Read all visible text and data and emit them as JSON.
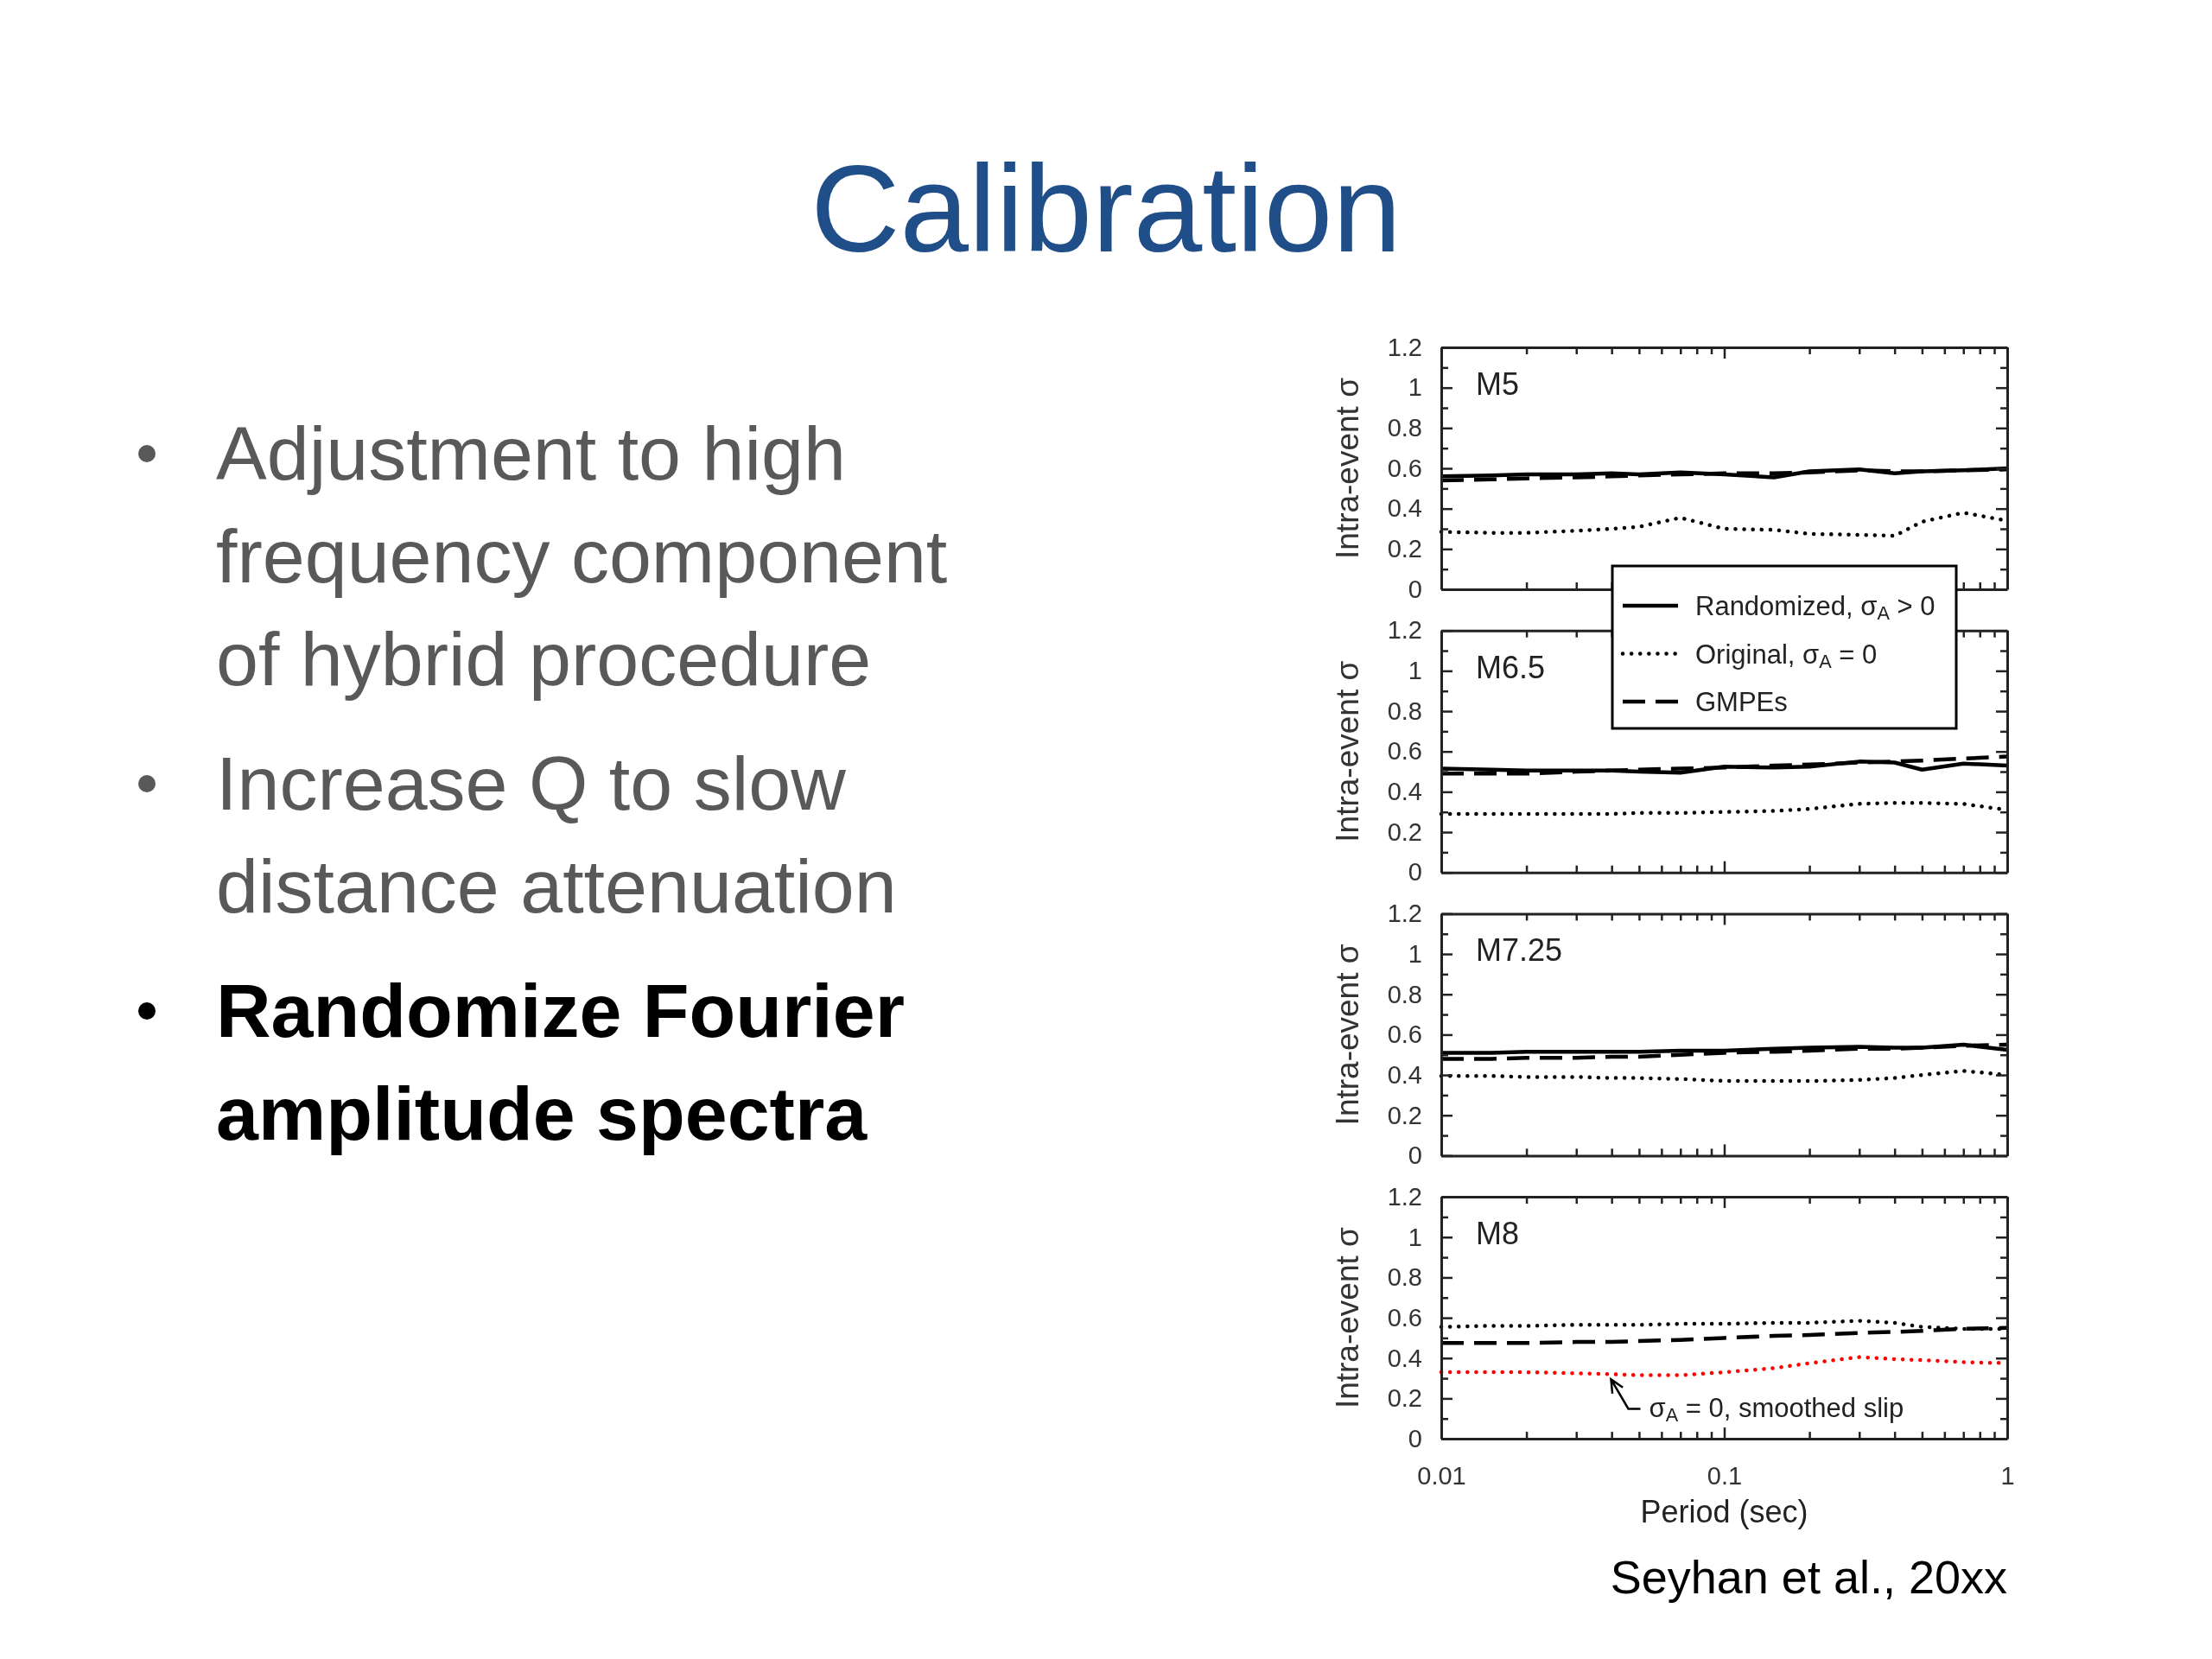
{
  "chart_data": [
    {
      "type": "other",
      "title": "Calibration",
      "annotations": [
        "Adjustment to high frequency component of hybrid procedure",
        "Increase Q to slow distance attenuation",
        "Randomize Fourier amplitude spectra"
      ]
    },
    {
      "type": "line",
      "title": "M5",
      "ylabel": "Intra-event σ",
      "log": "x",
      "tick_labels": "y",
      "legend": "bottom right",
      "xlim": [
        0.01,
        1
      ],
      "ylim": [
        0,
        1.2
      ],
      "xticks": [
        0.01,
        {
          "value": 0.02,
          "label": null
        },
        {
          "value": 0.03,
          "label": null
        },
        {
          "value": 0.04,
          "label": null
        },
        {
          "value": 0.05,
          "label": null
        },
        {
          "value": 0.06,
          "label": null
        },
        {
          "value": 0.07,
          "label": null
        },
        {
          "value": 0.08,
          "label": null
        },
        {
          "value": 0.09,
          "label": null
        },
        0.1,
        {
          "value": 0.2,
          "label": null
        },
        {
          "value": 0.3,
          "label": null
        },
        {
          "value": 0.4,
          "label": null
        },
        {
          "value": 0.5,
          "label": null
        },
        {
          "value": 0.6,
          "label": null
        },
        {
          "value": 0.7,
          "label": null
        },
        {
          "value": 0.8,
          "label": null
        },
        {
          "value": 0.9,
          "label": null
        },
        1
      ],
      "yticks": [
        0,
        {
          "value": 0.1,
          "label": null
        },
        0.2,
        {
          "value": 0.3,
          "label": null
        },
        0.4,
        {
          "value": 0.5,
          "label": null
        },
        0.6,
        {
          "value": 0.7,
          "label": null
        },
        0.8,
        {
          "value": 0.9,
          "label": null
        },
        1,
        {
          "value": 1.1,
          "label": null
        },
        1.2
      ],
      "x": [
        0.01,
        0.015,
        0.02,
        0.03,
        0.04,
        0.05,
        0.07,
        0.1,
        0.15,
        0.2,
        0.3,
        0.4,
        0.5,
        0.7,
        1
      ],
      "series": [
        {
          "name": "Randomized, σ$_{A}$ > 0",
          "color": "#000000",
          "line_style": "solid",
          "values": [
            0.56,
            0.565,
            0.57,
            0.57,
            0.575,
            0.57,
            0.58,
            0.57,
            0.555,
            0.585,
            0.595,
            0.575,
            0.585,
            0.59,
            0.6
          ]
        },
        {
          "name": "Original, σ$_{A}$ = 0",
          "color": "#000000",
          "line_style": "dotted",
          "values": [
            0.285,
            0.28,
            0.28,
            0.29,
            0.3,
            0.31,
            0.355,
            0.3,
            0.295,
            0.275,
            0.27,
            0.265,
            0.335,
            0.38,
            0.34
          ]
        },
        {
          "name": "GMPEs",
          "color": "#000000",
          "line_style": "dashed",
          "values": [
            0.54,
            0.545,
            0.55,
            0.555,
            0.56,
            0.565,
            0.57,
            0.575,
            0.575,
            0.58,
            0.59,
            0.585,
            0.585,
            0.59,
            0.595
          ]
        }
      ]
    },
    {
      "type": "line",
      "title": "M6.5",
      "ylabel": "Intra-event σ",
      "log": "x",
      "tick_labels": "y",
      "xlim": [
        0.01,
        1
      ],
      "ylim": [
        0,
        1.2
      ],
      "xticks": [
        0.01,
        {
          "value": 0.02,
          "label": null
        },
        {
          "value": 0.03,
          "label": null
        },
        {
          "value": 0.04,
          "label": null
        },
        {
          "value": 0.05,
          "label": null
        },
        {
          "value": 0.06,
          "label": null
        },
        {
          "value": 0.07,
          "label": null
        },
        {
          "value": 0.08,
          "label": null
        },
        {
          "value": 0.09,
          "label": null
        },
        0.1,
        {
          "value": 0.2,
          "label": null
        },
        {
          "value": 0.3,
          "label": null
        },
        {
          "value": 0.4,
          "label": null
        },
        {
          "value": 0.5,
          "label": null
        },
        {
          "value": 0.6,
          "label": null
        },
        {
          "value": 0.7,
          "label": null
        },
        {
          "value": 0.8,
          "label": null
        },
        {
          "value": 0.9,
          "label": null
        },
        1
      ],
      "yticks": [
        0,
        {
          "value": 0.1,
          "label": null
        },
        0.2,
        {
          "value": 0.3,
          "label": null
        },
        0.4,
        {
          "value": 0.5,
          "label": null
        },
        0.6,
        {
          "value": 0.7,
          "label": null
        },
        0.8,
        {
          "value": 0.9,
          "label": null
        },
        1,
        {
          "value": 1.1,
          "label": null
        },
        1.2
      ],
      "x": [
        0.01,
        0.015,
        0.02,
        0.03,
        0.04,
        0.05,
        0.07,
        0.1,
        0.15,
        0.2,
        0.3,
        0.4,
        0.5,
        0.7,
        1
      ],
      "series": [
        {
          "color": "#000000",
          "line_style": "solid",
          "values": [
            0.515,
            0.51,
            0.505,
            0.505,
            0.505,
            0.5,
            0.495,
            0.525,
            0.52,
            0.525,
            0.55,
            0.545,
            0.51,
            0.54,
            0.53
          ]
        },
        {
          "color": "#000000",
          "line_style": "dotted",
          "values": [
            0.29,
            0.29,
            0.29,
            0.29,
            0.29,
            0.295,
            0.295,
            0.3,
            0.305,
            0.315,
            0.34,
            0.345,
            0.345,
            0.34,
            0.31
          ]
        },
        {
          "color": "#000000",
          "line_style": "dashed",
          "values": [
            0.49,
            0.49,
            0.49,
            0.5,
            0.505,
            0.51,
            0.515,
            0.52,
            0.53,
            0.535,
            0.545,
            0.55,
            0.555,
            0.565,
            0.575
          ]
        }
      ]
    },
    {
      "type": "line",
      "title": "M7.25",
      "ylabel": "Intra-event σ",
      "log": "x",
      "tick_labels": "y",
      "xlim": [
        0.01,
        1
      ],
      "ylim": [
        0,
        1.2
      ],
      "xticks": [
        0.01,
        {
          "value": 0.02,
          "label": null
        },
        {
          "value": 0.03,
          "label": null
        },
        {
          "value": 0.04,
          "label": null
        },
        {
          "value": 0.05,
          "label": null
        },
        {
          "value": 0.06,
          "label": null
        },
        {
          "value": 0.07,
          "label": null
        },
        {
          "value": 0.08,
          "label": null
        },
        {
          "value": 0.09,
          "label": null
        },
        0.1,
        {
          "value": 0.2,
          "label": null
        },
        {
          "value": 0.3,
          "label": null
        },
        {
          "value": 0.4,
          "label": null
        },
        {
          "value": 0.5,
          "label": null
        },
        {
          "value": 0.6,
          "label": null
        },
        {
          "value": 0.7,
          "label": null
        },
        {
          "value": 0.8,
          "label": null
        },
        {
          "value": 0.9,
          "label": null
        },
        1
      ],
      "yticks": [
        0,
        {
          "value": 0.1,
          "label": null
        },
        0.2,
        {
          "value": 0.3,
          "label": null
        },
        0.4,
        {
          "value": 0.5,
          "label": null
        },
        0.6,
        {
          "value": 0.7,
          "label": null
        },
        0.8,
        {
          "value": 0.9,
          "label": null
        },
        1,
        {
          "value": 1.1,
          "label": null
        },
        1.2
      ],
      "x": [
        0.01,
        0.015,
        0.02,
        0.03,
        0.04,
        0.05,
        0.07,
        0.1,
        0.15,
        0.2,
        0.3,
        0.4,
        0.5,
        0.7,
        1
      ],
      "series": [
        {
          "color": "#000000",
          "line_style": "solid",
          "values": [
            0.51,
            0.51,
            0.515,
            0.515,
            0.515,
            0.515,
            0.52,
            0.52,
            0.53,
            0.535,
            0.54,
            0.535,
            0.535,
            0.55,
            0.525
          ]
        },
        {
          "color": "#000000",
          "line_style": "dotted",
          "values": [
            0.395,
            0.395,
            0.39,
            0.39,
            0.385,
            0.385,
            0.38,
            0.37,
            0.37,
            0.37,
            0.375,
            0.385,
            0.4,
            0.42,
            0.4
          ]
        },
        {
          "color": "#000000",
          "line_style": "dashed",
          "values": [
            0.48,
            0.48,
            0.485,
            0.485,
            0.49,
            0.49,
            0.5,
            0.51,
            0.515,
            0.52,
            0.53,
            0.53,
            0.535,
            0.545,
            0.55
          ]
        }
      ]
    },
    {
      "type": "line",
      "title": "M8",
      "ylabel": "Intra-event σ",
      "xlabel": "Period (sec)",
      "log": "x",
      "xlim": [
        0.01,
        1
      ],
      "ylim": [
        0,
        1.2
      ],
      "xticks": [
        0.01,
        {
          "value": 0.02,
          "label": null
        },
        {
          "value": 0.03,
          "label": null
        },
        {
          "value": 0.04,
          "label": null
        },
        {
          "value": 0.05,
          "label": null
        },
        {
          "value": 0.06,
          "label": null
        },
        {
          "value": 0.07,
          "label": null
        },
        {
          "value": 0.08,
          "label": null
        },
        {
          "value": 0.09,
          "label": null
        },
        0.1,
        {
          "value": 0.2,
          "label": null
        },
        {
          "value": 0.3,
          "label": null
        },
        {
          "value": 0.4,
          "label": null
        },
        {
          "value": 0.5,
          "label": null
        },
        {
          "value": 0.6,
          "label": null
        },
        {
          "value": 0.7,
          "label": null
        },
        {
          "value": 0.8,
          "label": null
        },
        {
          "value": 0.9,
          "label": null
        },
        1
      ],
      "yticks": [
        0,
        {
          "value": 0.1,
          "label": null
        },
        0.2,
        {
          "value": 0.3,
          "label": null
        },
        0.4,
        {
          "value": 0.5,
          "label": null
        },
        0.6,
        {
          "value": 0.7,
          "label": null
        },
        0.8,
        {
          "value": 0.9,
          "label": null
        },
        1,
        {
          "value": 1.1,
          "label": null
        },
        1.2
      ],
      "x": [
        0.01,
        0.015,
        0.02,
        0.03,
        0.04,
        0.05,
        0.07,
        0.1,
        0.15,
        0.2,
        0.3,
        0.4,
        0.5,
        0.7,
        1
      ],
      "series": [
        {
          "color": "#000000",
          "line_style": "dotted",
          "values": [
            0.555,
            0.56,
            0.56,
            0.565,
            0.565,
            0.565,
            0.57,
            0.57,
            0.575,
            0.575,
            0.585,
            0.575,
            0.555,
            0.545,
            0.545
          ]
        },
        {
          "color": "#000000",
          "line_style": "dashed",
          "values": [
            0.475,
            0.475,
            0.475,
            0.48,
            0.48,
            0.485,
            0.49,
            0.5,
            0.51,
            0.515,
            0.525,
            0.53,
            0.535,
            0.545,
            0.55
          ]
        },
        {
          "name": "σ$_{A}$ = 0, smoothed slip",
          "color": "#ff0000",
          "line_style": "dotted",
          "values": [
            0.33,
            0.33,
            0.33,
            0.325,
            0.32,
            0.315,
            0.315,
            0.33,
            0.35,
            0.375,
            0.405,
            0.395,
            0.39,
            0.38,
            0.375
          ]
        }
      ],
      "annotations": [
        "Seyhan et al., 20xx"
      ]
    }
  ]
}
